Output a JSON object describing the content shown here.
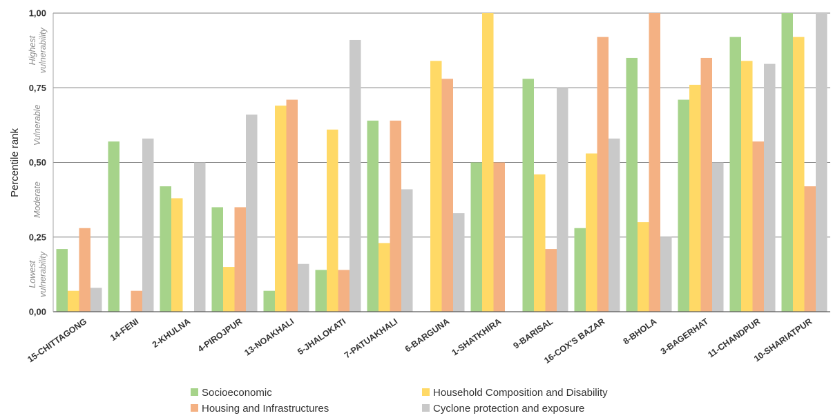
{
  "chart_data": {
    "type": "bar",
    "ylabel": "Percentile rank",
    "ylim": [
      0,
      1
    ],
    "yticks": [
      "0,00",
      "0,25",
      "0,50",
      "0,75",
      "1,00"
    ],
    "grid": true,
    "legend_position": "bottom",
    "band_labels": [
      [
        "Lowest",
        "vulnerability"
      ],
      [
        "Moderate"
      ],
      [
        "Vulnerable"
      ],
      [
        "Highest",
        "vulnerability"
      ]
    ],
    "categories": [
      "15-CHITTAGONG",
      "14-FENI",
      "2-KHULNA",
      "4-PIROJPUR",
      "13-NOAKHALI",
      "5-JHALOKATI",
      "7-PATUAKHALI",
      "6-BARGUNA",
      "1-SHATKHIRA",
      "9-BARISAL",
      "16-COX'S BAZAR",
      "8-BHOLA",
      "3-BAGERHAT",
      "11-CHANDPUR",
      "10-SHARIATPUR"
    ],
    "series": [
      {
        "name": "Socioeconomic",
        "color": "#a6d38a",
        "values": [
          0.21,
          0.57,
          0.42,
          0.35,
          0.07,
          0.14,
          0.64,
          0.0,
          0.5,
          0.78,
          0.28,
          0.85,
          0.71,
          0.92,
          1.0
        ]
      },
      {
        "name": "Household Composition and Disability",
        "color": "#ffd966",
        "values": [
          0.07,
          0.0,
          0.38,
          0.15,
          0.69,
          0.61,
          0.23,
          0.84,
          1.0,
          0.46,
          0.53,
          0.3,
          0.76,
          0.84,
          0.92
        ]
      },
      {
        "name": "Housing and Infrastructures",
        "color": "#f4b183",
        "values": [
          0.28,
          0.07,
          0.0,
          0.35,
          0.71,
          0.14,
          0.64,
          0.78,
          0.5,
          0.21,
          0.92,
          1.0,
          0.85,
          0.57,
          0.42
        ]
      },
      {
        "name": "Cyclone protection and exposure",
        "color": "#c9c9c9",
        "values": [
          0.08,
          0.58,
          0.5,
          0.66,
          0.16,
          0.91,
          0.41,
          0.33,
          0.0,
          0.75,
          0.58,
          0.25,
          0.5,
          0.83,
          1.0
        ]
      }
    ]
  }
}
